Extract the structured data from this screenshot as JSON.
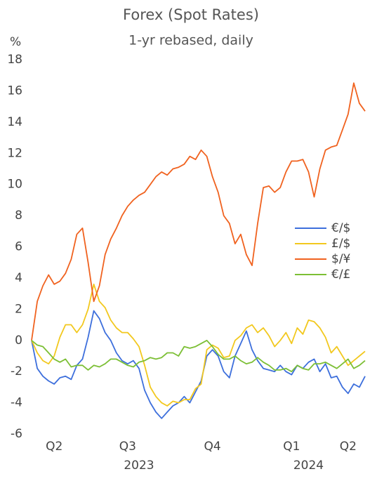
{
  "chart_data": {
    "type": "line",
    "title": "Forex (Spot Rates)",
    "subtitle": "1-yr rebased, daily",
    "y_label": "%",
    "categories": [
      null,
      null,
      null,
      null,
      "Q2",
      null,
      null,
      null,
      null,
      null,
      null,
      null,
      null,
      null,
      null,
      null,
      null,
      "Q3",
      null,
      null,
      null,
      null,
      null,
      null,
      null,
      null,
      null,
      null,
      null,
      null,
      null,
      null,
      "Q4",
      null,
      null,
      null,
      null,
      null,
      null,
      null,
      null,
      null,
      null,
      null,
      null,
      null,
      "Q1",
      null,
      null,
      null,
      null,
      null,
      null,
      null,
      null,
      null,
      "Q2",
      null,
      null,
      null
    ],
    "category_groups": [
      null,
      null,
      null,
      null,
      null,
      null,
      null,
      null,
      null,
      null,
      null,
      null,
      null,
      null,
      null,
      null,
      null,
      null,
      null,
      "2023",
      null,
      null,
      null,
      null,
      null,
      null,
      null,
      null,
      null,
      null,
      null,
      null,
      null,
      null,
      null,
      null,
      null,
      null,
      null,
      null,
      null,
      null,
      null,
      null,
      null,
      null,
      null,
      null,
      null,
      "2024",
      null,
      null,
      null,
      null,
      null,
      null,
      null,
      null,
      null,
      null
    ],
    "series": [
      {
        "name": "€/$",
        "color": "#3d6fdc",
        "values": [
          0,
          -1.8,
          -2.3,
          -2.6,
          -2.8,
          -2.4,
          -2.3,
          -2.5,
          -1.6,
          -1.2,
          0.2,
          1.9,
          1.4,
          0.5,
          0,
          -0.8,
          -1.3,
          -1.5,
          -1.3,
          -1.8,
          -3.2,
          -4.0,
          -4.6,
          -5.0,
          -4.6,
          -4.2,
          -4.0,
          -3.6,
          -4.0,
          -3.3,
          -2.6,
          -1.0,
          -0.6,
          -1.0,
          -2.0,
          -2.4,
          -1.0,
          -0.2,
          0.6,
          -0.6,
          -1.3,
          -1.8,
          -1.9,
          -2.0,
          -1.6,
          -2.0,
          -2.2,
          -1.6,
          -1.8,
          -1.4,
          -1.2,
          -2.0,
          -1.5,
          -2.4,
          -2.3,
          -3.0,
          -3.4,
          -2.8,
          -3.0,
          -2.3
        ]
      },
      {
        "name": "£/$",
        "color": "#f2c81e",
        "values": [
          0,
          -0.8,
          -1.3,
          -1.5,
          -1.0,
          0.2,
          1.0,
          1.0,
          0.5,
          1.0,
          2.0,
          3.6,
          2.5,
          2.1,
          1.3,
          0.8,
          0.5,
          0.5,
          0.1,
          -0.4,
          -1.6,
          -3.0,
          -3.6,
          -4.0,
          -4.2,
          -3.9,
          -4.0,
          -3.8,
          -3.8,
          -3.1,
          -2.8,
          -0.6,
          -0.3,
          -0.5,
          -1.1,
          -1.0,
          0.0,
          0.3,
          0.8,
          1.0,
          0.5,
          0.8,
          0.3,
          -0.4,
          0.0,
          0.5,
          -0.2,
          0.8,
          0.4,
          1.3,
          1.2,
          0.8,
          0.2,
          -0.8,
          -0.4,
          -1.0,
          -1.6,
          -1.3,
          -1.0,
          -0.7
        ]
      },
      {
        "name": "$/¥",
        "color": "#f0621f",
        "values": [
          0,
          2.5,
          3.5,
          4.2,
          3.6,
          3.8,
          4.3,
          5.2,
          6.8,
          7.2,
          5.0,
          2.5,
          3.5,
          5.5,
          6.5,
          7.2,
          8.0,
          8.6,
          9.0,
          9.3,
          9.5,
          10.0,
          10.5,
          10.8,
          10.6,
          11.0,
          11.1,
          11.3,
          11.8,
          11.6,
          12.2,
          11.8,
          10.5,
          9.5,
          8.0,
          7.5,
          6.2,
          6.8,
          5.5,
          4.8,
          7.5,
          9.8,
          9.9,
          9.5,
          9.8,
          10.8,
          11.5,
          11.5,
          11.6,
          10.8,
          9.2,
          11.0,
          12.2,
          12.4,
          12.5,
          13.5,
          14.5,
          16.5,
          15.2,
          14.7
        ]
      },
      {
        "name": "€/£",
        "color": "#7cbf35",
        "values": [
          0,
          -0.3,
          -0.4,
          -0.8,
          -1.2,
          -1.4,
          -1.2,
          -1.7,
          -1.6,
          -1.6,
          -1.9,
          -1.6,
          -1.7,
          -1.5,
          -1.2,
          -1.2,
          -1.4,
          -1.6,
          -1.7,
          -1.4,
          -1.3,
          -1.1,
          -1.2,
          -1.1,
          -0.8,
          -0.8,
          -1.0,
          -0.4,
          -0.5,
          -0.4,
          -0.2,
          0.0,
          -0.4,
          -0.9,
          -1.2,
          -1.2,
          -1.0,
          -1.3,
          -1.5,
          -1.4,
          -1.1,
          -1.4,
          -1.6,
          -1.9,
          -1.9,
          -1.8,
          -2.0,
          -1.6,
          -1.8,
          -1.9,
          -1.5,
          -1.5,
          -1.4,
          -1.6,
          -1.8,
          -1.5,
          -1.2,
          -1.8,
          -1.6,
          -1.3
        ]
      }
    ],
    "ylim": [
      -6,
      18
    ],
    "yticks": [
      -6,
      -4,
      -2,
      0,
      2,
      4,
      6,
      8,
      10,
      12,
      14,
      16,
      18
    ],
    "tick_color": "#444444",
    "negative_tick_color": "#d6335c",
    "legend": "right",
    "grid": false
  }
}
